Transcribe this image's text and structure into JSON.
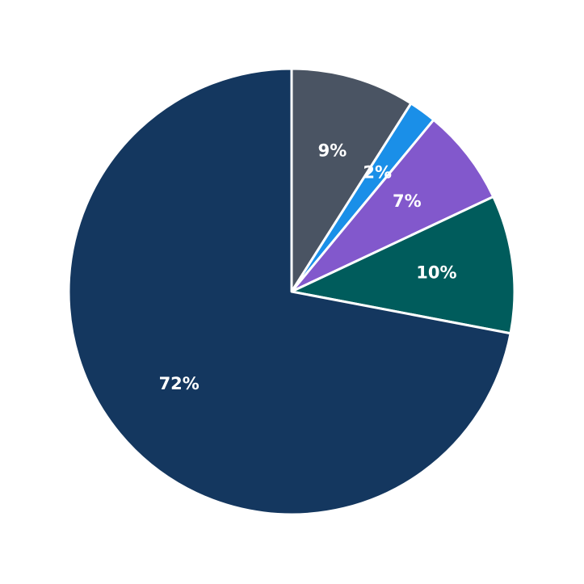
{
  "chart_data": {
    "type": "pie",
    "values": [
      9,
      2,
      7,
      10,
      72
    ],
    "value_labels": [
      "9%",
      "2%",
      "7%",
      "10%",
      "72%"
    ],
    "colors": [
      "#4a5463",
      "#1a8fe8",
      "#8258cc",
      "#005c5c",
      "#14375f"
    ]
  }
}
